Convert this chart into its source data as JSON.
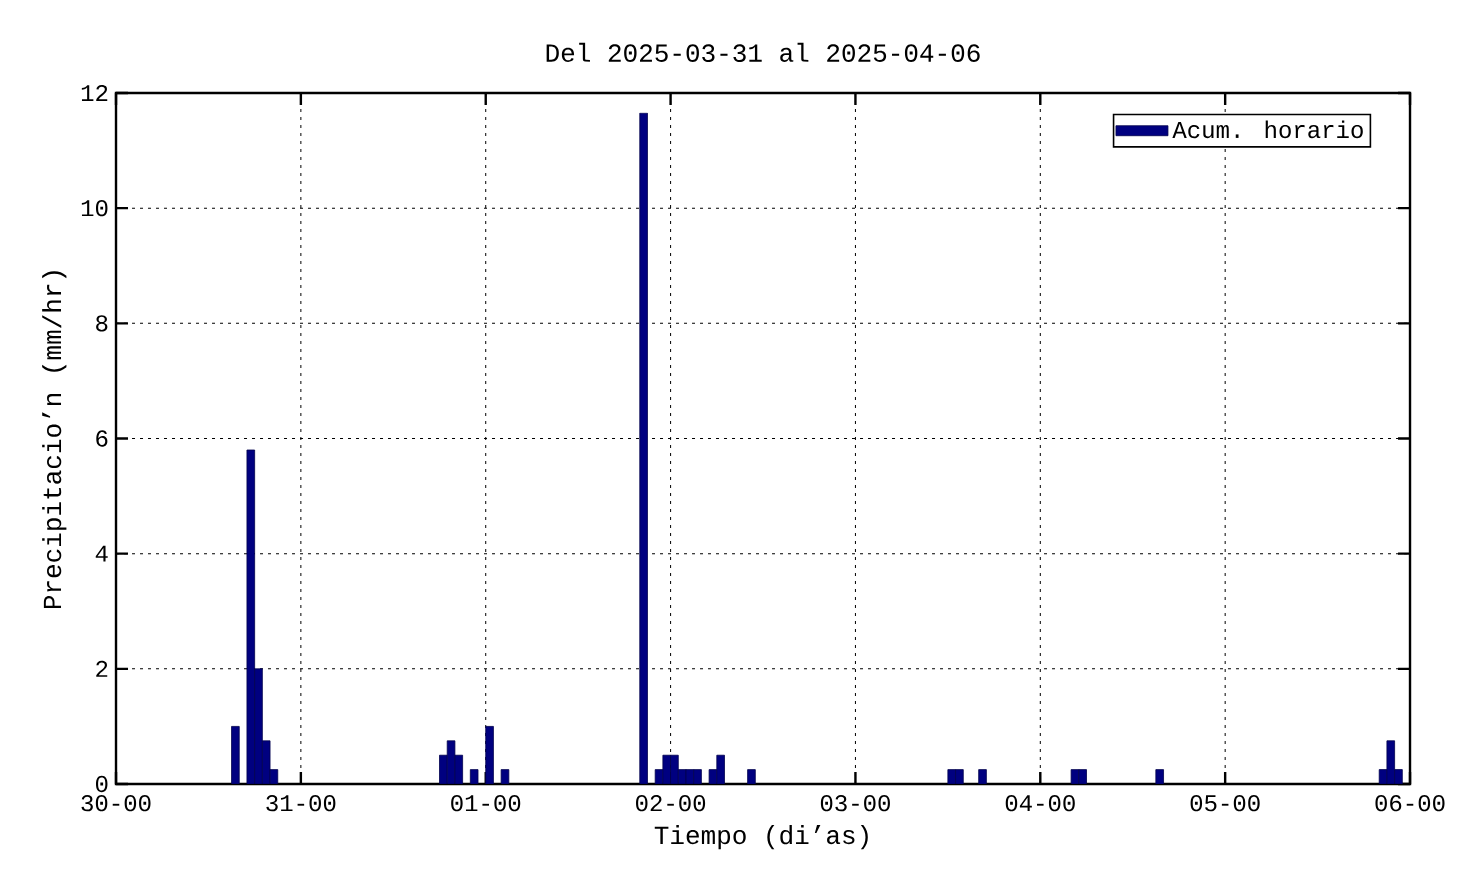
{
  "chart_data": {
    "type": "bar",
    "title": "Del 2025-03-31 al 2025-04-06",
    "xlabel": "Tiempo (di’as)",
    "ylabel": "Precipitacio’n (mm/hr)",
    "x": [
      "2025-03-30T15:30",
      "2025-03-30T17:30",
      "2025-03-30T18:30",
      "2025-03-30T19:30",
      "2025-03-30T20:30",
      "2025-03-31T18:30",
      "2025-03-31T19:30",
      "2025-03-31T20:30",
      "2025-03-31T22:30",
      "2025-04-01T00:30",
      "2025-04-01T02:30",
      "2025-04-01T20:30",
      "2025-04-01T22:30",
      "2025-04-01T23:30",
      "2025-04-02T00:30",
      "2025-04-02T01:30",
      "2025-04-02T02:30",
      "2025-04-02T03:30",
      "2025-04-02T05:30",
      "2025-04-02T06:30",
      "2025-04-02T10:30",
      "2025-04-03T12:30",
      "2025-04-03T13:30",
      "2025-04-03T16:30",
      "2025-04-04T04:30",
      "2025-04-04T05:30",
      "2025-04-04T15:30",
      "2025-04-05T20:30",
      "2025-04-05T21:30",
      "2025-04-05T22:30"
    ],
    "series": [
      {
        "name": "Acum. horario",
        "color": "#000080",
        "values": [
          1.0,
          5.8,
          2.0,
          0.75,
          0.25,
          0.5,
          0.75,
          0.5,
          0.25,
          1.0,
          0.25,
          11.65,
          0.25,
          0.5,
          0.5,
          0.25,
          0.25,
          0.25,
          0.25,
          0.5,
          0.25,
          0.25,
          0.25,
          0.25,
          0.25,
          0.25,
          0.25,
          0.25,
          0.75,
          0.25
        ]
      }
    ],
    "xlim": [
      "2025-03-30T00:00",
      "2025-04-06T00:00"
    ],
    "ylim": [
      0,
      12
    ],
    "xticks": [
      {
        "value": "2025-03-30T00:00",
        "label": "30-00"
      },
      {
        "value": "2025-03-31T00:00",
        "label": "31-00"
      },
      {
        "value": "2025-04-01T00:00",
        "label": "01-00"
      },
      {
        "value": "2025-04-02T00:00",
        "label": "02-00"
      },
      {
        "value": "2025-04-03T00:00",
        "label": "03-00"
      },
      {
        "value": "2025-04-04T00:00",
        "label": "04-00"
      },
      {
        "value": "2025-04-05T00:00",
        "label": "05-00"
      },
      {
        "value": "2025-04-06T00:00",
        "label": "06-00"
      }
    ],
    "yticks": [
      0,
      2,
      4,
      6,
      8,
      10,
      12
    ],
    "grid": true,
    "legend": "top right"
  }
}
